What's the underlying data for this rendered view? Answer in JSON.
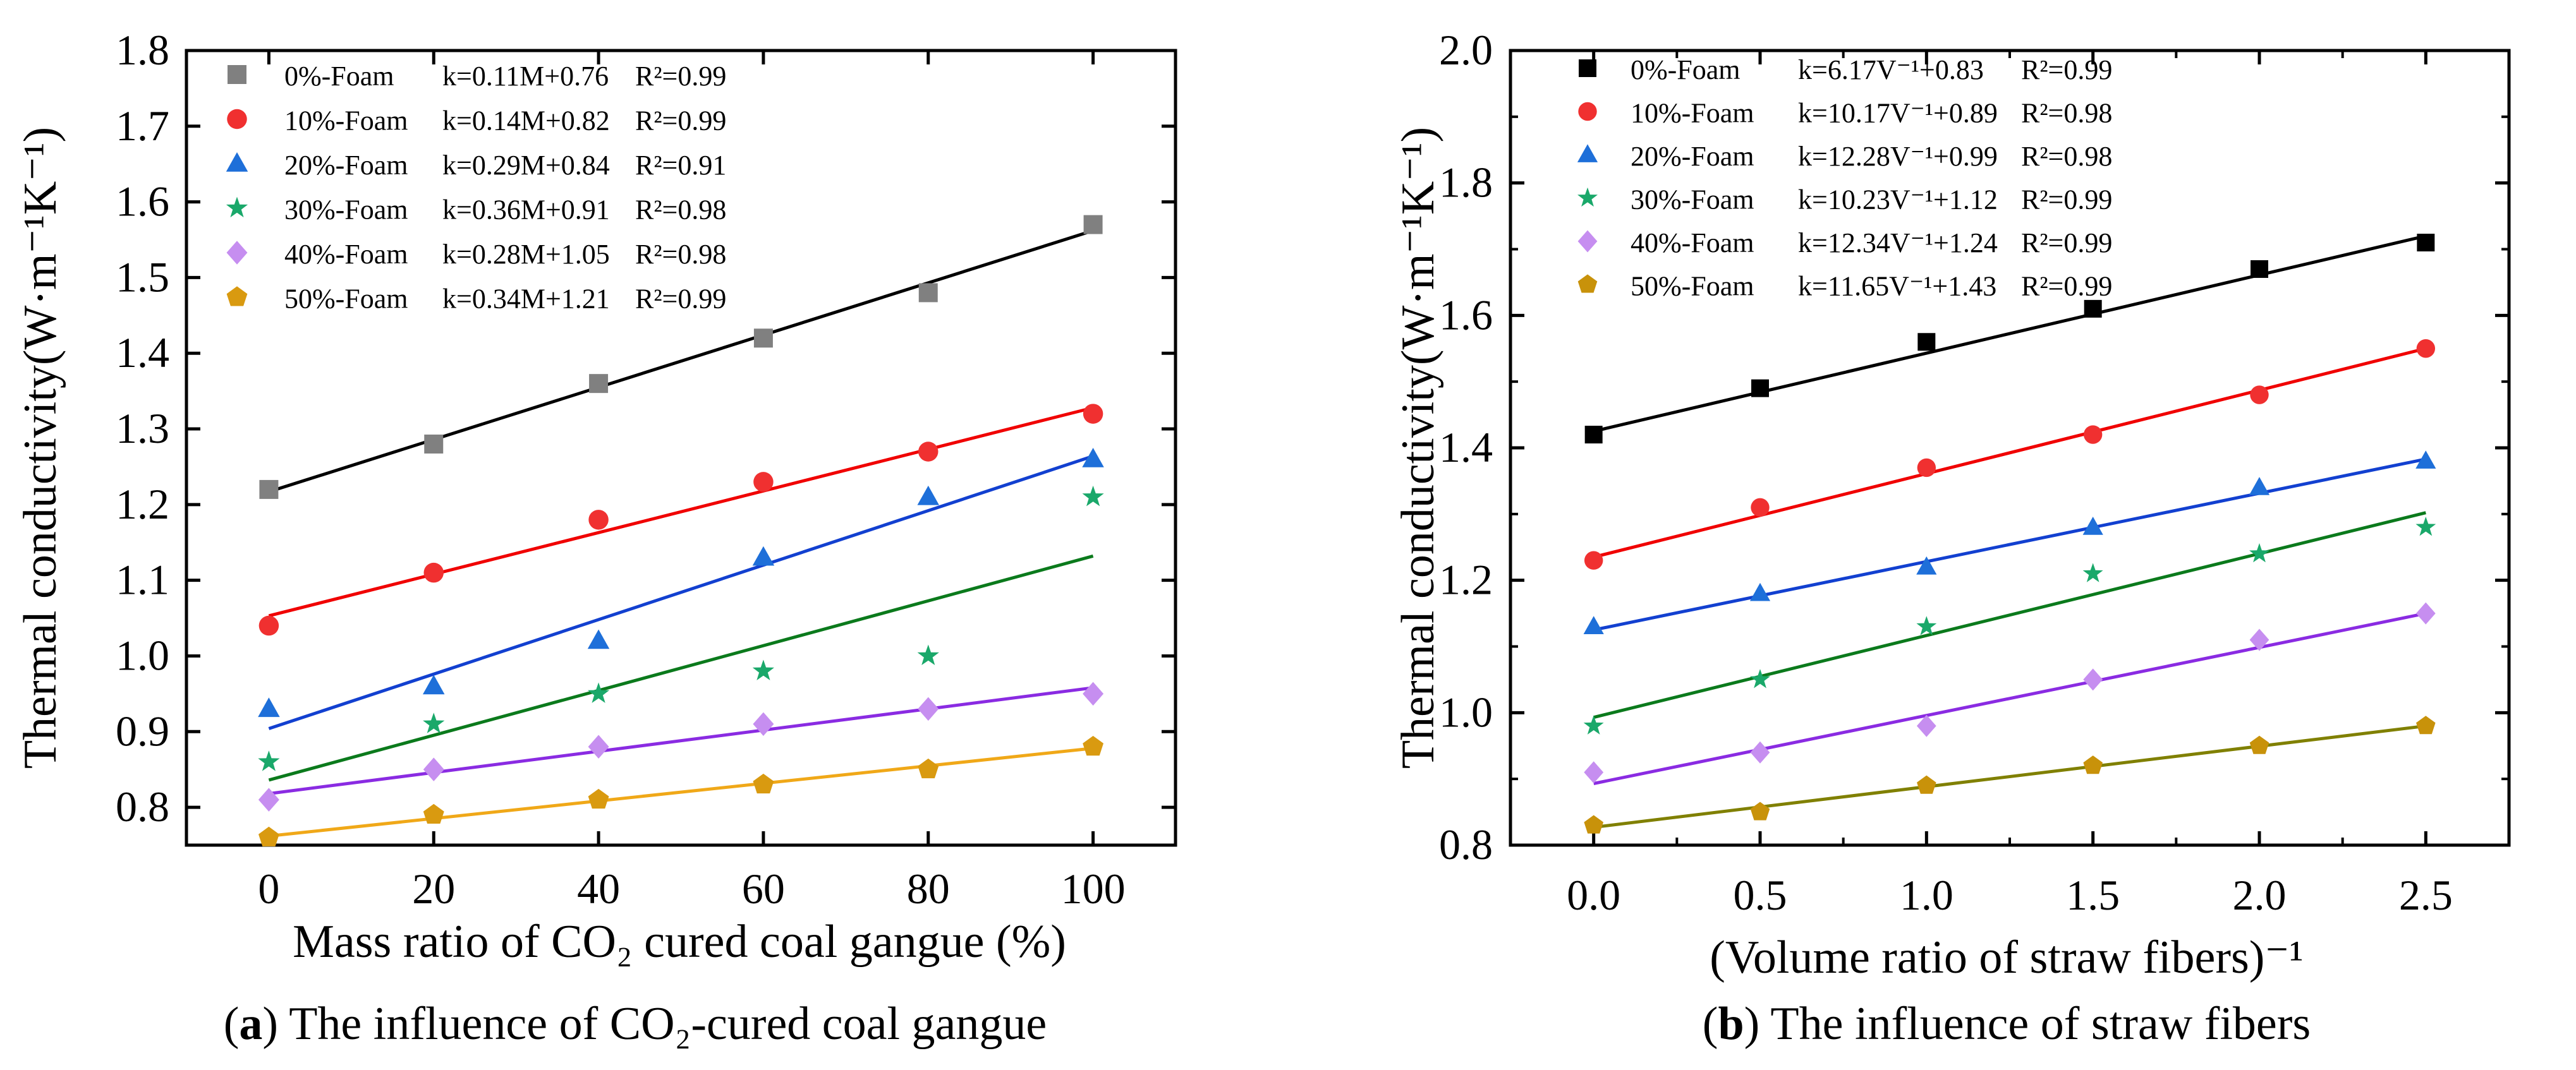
{
  "figure": {
    "panels": [
      {
        "id": "a",
        "caption_letter": "a",
        "caption_text": "The influence of CO₂-cured coal gangue",
        "ylabel": "Thermal conductivity(W·m⁻¹K⁻¹)",
        "xlabel": "Mass ratio of CO₂ cured coal gangue (%)",
        "xticks": [
          "0",
          "20",
          "40",
          "60",
          "80",
          "100"
        ],
        "yticks": [
          "0.8",
          "0.9",
          "1.0",
          "1.1",
          "1.2",
          "1.3",
          "1.4",
          "1.5",
          "1.6",
          "1.7",
          "1.8"
        ],
        "legend": [
          {
            "label": "0%-Foam",
            "fit": "k=0.11M+0.76",
            "r2": "R²=0.99"
          },
          {
            "label": "10%-Foam",
            "fit": "k=0.14M+0.82",
            "r2": "R²=0.99"
          },
          {
            "label": "20%-Foam",
            "fit": "k=0.29M+0.84",
            "r2": "R²=0.91"
          },
          {
            "label": "30%-Foam",
            "fit": "k=0.36M+0.91",
            "r2": "R²=0.98"
          },
          {
            "label": "40%-Foam",
            "fit": "k=0.28M+1.05",
            "r2": "R²=0.98"
          },
          {
            "label": "50%-Foam",
            "fit": "k=0.34M+1.21",
            "r2": "R²=0.99"
          }
        ]
      },
      {
        "id": "b",
        "caption_letter": "b",
        "caption_text": "The influence of straw fibers",
        "ylabel": "Thermal conductivity(W·m⁻¹K⁻¹)",
        "xlabel": "(Volume ratio of straw fibers)⁻¹",
        "xticks": [
          "0.0",
          "0.5",
          "1.0",
          "1.5",
          "2.0",
          "2.5"
        ],
        "yticks": [
          "0.8",
          "1.0",
          "1.2",
          "1.4",
          "1.6",
          "1.8",
          "2.0"
        ],
        "legend": [
          {
            "label": "0%-Foam",
            "fit": "k=6.17V⁻¹+0.83",
            "r2": "R²=0.99"
          },
          {
            "label": "10%-Foam",
            "fit": "k=10.17V⁻¹+0.89",
            "r2": "R²=0.98"
          },
          {
            "label": "20%-Foam",
            "fit": "k=12.28V⁻¹+0.99",
            "r2": "R²=0.98"
          },
          {
            "label": "30%-Foam",
            "fit": "k=10.23V⁻¹+1.12",
            "r2": "R²=0.99"
          },
          {
            "label": "40%-Foam",
            "fit": "k=12.34V⁻¹+1.24",
            "r2": "R²=0.99"
          },
          {
            "label": "50%-Foam",
            "fit": "k=11.65V⁻¹+1.43",
            "r2": "R²=0.99"
          }
        ]
      }
    ]
  },
  "chart_data": [
    {
      "type": "scatter",
      "panel": "a",
      "title": "",
      "xlabel": "Mass ratio of CO2 cured coal gangue (%)",
      "ylabel": "Thermal conductivity(W·m-1K-1)",
      "xlim": [
        -10,
        110
      ],
      "ylim": [
        0.75,
        1.8
      ],
      "x": [
        0,
        20,
        40,
        60,
        80,
        100
      ],
      "legend_position": "top-left",
      "series": [
        {
          "name": "0%-Foam",
          "marker": "square",
          "marker_color": "#808080",
          "line_color": "#000000",
          "values": [
            1.22,
            1.28,
            1.36,
            1.42,
            1.48,
            1.57
          ],
          "fit": [
            1.217,
            1.562
          ]
        },
        {
          "name": "10%-Foam",
          "marker": "circle",
          "marker_color": "#f03030",
          "line_color": "#f00000",
          "values": [
            1.04,
            1.11,
            1.18,
            1.23,
            1.27,
            1.32
          ],
          "fit": [
            1.053,
            1.328
          ]
        },
        {
          "name": "20%-Foam",
          "marker": "triangle",
          "marker_color": "#1e6fd9",
          "line_color": "#1240d0",
          "values": [
            0.93,
            0.96,
            1.02,
            1.13,
            1.21,
            1.26
          ],
          "fit": [
            0.904,
            1.264
          ]
        },
        {
          "name": "30%-Foam",
          "marker": "star",
          "marker_color": "#1aa86a",
          "line_color": "#0b7a1c",
          "values": [
            0.86,
            0.91,
            0.95,
            0.98,
            1.0,
            1.21
          ],
          "fit": [
            0.836,
            1.132
          ]
        },
        {
          "name": "40%-Foam",
          "marker": "diamond",
          "marker_color": "#c68ef0",
          "line_color": "#8a2be2",
          "values": [
            0.81,
            0.85,
            0.88,
            0.91,
            0.93,
            0.95
          ],
          "fit": [
            0.818,
            0.958
          ]
        },
        {
          "name": "50%-Foam",
          "marker": "pentagon",
          "marker_color": "#d99a10",
          "line_color": "#f0a818",
          "values": [
            0.76,
            0.79,
            0.81,
            0.83,
            0.85,
            0.88
          ],
          "fit": [
            0.762,
            0.878
          ]
        }
      ]
    },
    {
      "type": "scatter",
      "panel": "b",
      "title": "",
      "xlabel": "(Volume ratio of straw fibers)-1",
      "ylabel": "Thermal conductivity(W·m-1K-1)",
      "xlim": [
        -0.25,
        2.75
      ],
      "ylim": [
        0.8,
        2.0
      ],
      "x": [
        0,
        0.5,
        1.0,
        1.5,
        2.0,
        2.5
      ],
      "legend_position": "top-left",
      "series": [
        {
          "name": "0%-Foam",
          "marker": "square",
          "marker_color": "#000000",
          "line_color": "#000000",
          "values": [
            1.42,
            1.49,
            1.56,
            1.61,
            1.67,
            1.71
          ],
          "fit": [
            1.425,
            1.72
          ]
        },
        {
          "name": "10%-Foam",
          "marker": "circle",
          "marker_color": "#f03030",
          "line_color": "#f00000",
          "values": [
            1.23,
            1.31,
            1.37,
            1.42,
            1.48,
            1.55
          ],
          "fit": [
            1.235,
            1.55
          ]
        },
        {
          "name": "20%-Foam",
          "marker": "triangle",
          "marker_color": "#1e6fd9",
          "line_color": "#1240d0",
          "values": [
            1.13,
            1.18,
            1.22,
            1.28,
            1.34,
            1.38
          ],
          "fit": [
            1.125,
            1.383
          ]
        },
        {
          "name": "30%-Foam",
          "marker": "star",
          "marker_color": "#1aa86a",
          "line_color": "#0b7a1c",
          "values": [
            0.98,
            1.05,
            1.13,
            1.21,
            1.24,
            1.28
          ],
          "fit": [
            0.993,
            1.302
          ]
        },
        {
          "name": "40%-Foam",
          "marker": "diamond",
          "marker_color": "#c68ef0",
          "line_color": "#8a2be2",
          "values": [
            0.91,
            0.94,
            0.98,
            1.05,
            1.11,
            1.15
          ],
          "fit": [
            0.893,
            1.15
          ]
        },
        {
          "name": "50%-Foam",
          "marker": "pentagon",
          "marker_color": "#c8920a",
          "line_color": "#808000",
          "values": [
            0.83,
            0.85,
            0.89,
            0.92,
            0.95,
            0.98
          ],
          "fit": [
            0.827,
            0.98
          ]
        }
      ]
    }
  ]
}
